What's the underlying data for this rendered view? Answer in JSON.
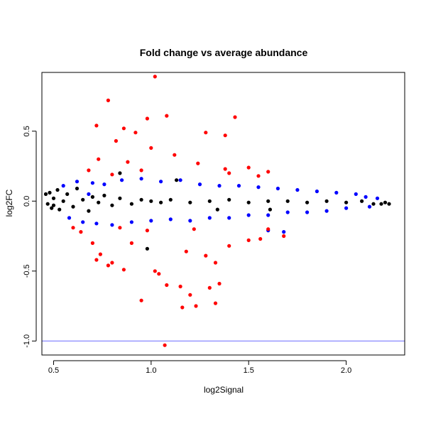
{
  "chart_data": {
    "type": "scatter",
    "title": "Fold change vs average abundance",
    "xlabel": "log2Signal",
    "ylabel": "log2FC",
    "xlim": [
      0.44,
      2.3
    ],
    "ylim": [
      -1.1,
      0.92
    ],
    "x_ticks": [
      0.5,
      1.0,
      1.5,
      2.0
    ],
    "x_tick_labels": [
      "0.5",
      "1.0",
      "1.5",
      "2.0"
    ],
    "y_ticks": [
      -1.0,
      -0.5,
      0.0,
      0.5
    ],
    "y_tick_labels": [
      "-1.0",
      "-0.5",
      "0.0",
      "0.5"
    ],
    "grid": false,
    "colors": {
      "background_points": "#000000",
      "moderate_points": "#0000ff",
      "outlier_points": "#ff0000",
      "reference_line": "#6a6aff"
    },
    "reference_line": {
      "orientation": "horizontal",
      "y": -1.0
    },
    "series": [
      {
        "color": "#000000",
        "points": [
          [
            0.46,
            0.05
          ],
          [
            0.47,
            -0.02
          ],
          [
            0.48,
            0.06
          ],
          [
            0.49,
            -0.05
          ],
          [
            0.5,
            0.02
          ],
          [
            0.5,
            -0.03
          ],
          [
            0.52,
            0.08
          ],
          [
            0.53,
            -0.06
          ],
          [
            0.55,
            0.0
          ],
          [
            0.57,
            0.05
          ],
          [
            0.6,
            -0.04
          ],
          [
            0.62,
            0.09
          ],
          [
            0.65,
            0.01
          ],
          [
            0.68,
            -0.07
          ],
          [
            0.7,
            0.03
          ],
          [
            0.73,
            -0.01
          ],
          [
            0.76,
            0.04
          ],
          [
            0.8,
            -0.03
          ],
          [
            0.84,
            0.02
          ],
          [
            0.9,
            -0.02
          ],
          [
            0.95,
            0.01
          ],
          [
            1.0,
            0.0
          ],
          [
            1.05,
            -0.01
          ],
          [
            1.1,
            0.01
          ],
          [
            1.2,
            -0.01
          ],
          [
            1.3,
            0.0
          ],
          [
            1.4,
            0.01
          ],
          [
            1.5,
            -0.01
          ],
          [
            1.6,
            0.0
          ],
          [
            1.7,
            0.0
          ],
          [
            1.8,
            -0.01
          ],
          [
            1.9,
            0.0
          ],
          [
            2.0,
            -0.01
          ],
          [
            2.08,
            0.0
          ],
          [
            2.14,
            -0.02
          ],
          [
            2.18,
            -0.02
          ],
          [
            2.2,
            -0.01
          ],
          [
            2.22,
            -0.02
          ],
          [
            0.84,
            0.2
          ],
          [
            0.98,
            -0.34
          ],
          [
            1.34,
            -0.06
          ],
          [
            1.61,
            -0.06
          ],
          [
            1.13,
            0.15
          ]
        ]
      },
      {
        "color": "#0000ff",
        "points": [
          [
            0.55,
            0.11
          ],
          [
            0.58,
            -0.12
          ],
          [
            0.62,
            0.14
          ],
          [
            0.65,
            -0.15
          ],
          [
            0.7,
            0.13
          ],
          [
            0.72,
            -0.16
          ],
          [
            0.76,
            0.12
          ],
          [
            0.8,
            -0.17
          ],
          [
            0.85,
            0.15
          ],
          [
            0.9,
            -0.15
          ],
          [
            0.95,
            0.16
          ],
          [
            1.0,
            -0.14
          ],
          [
            1.05,
            0.14
          ],
          [
            1.1,
            -0.13
          ],
          [
            1.15,
            0.15
          ],
          [
            1.2,
            -0.14
          ],
          [
            1.25,
            0.12
          ],
          [
            1.3,
            -0.12
          ],
          [
            1.35,
            0.11
          ],
          [
            1.4,
            -0.12
          ],
          [
            1.45,
            0.11
          ],
          [
            1.5,
            -0.1
          ],
          [
            1.55,
            0.1
          ],
          [
            1.6,
            -0.1
          ],
          [
            1.65,
            0.09
          ],
          [
            1.7,
            -0.08
          ],
          [
            1.75,
            0.08
          ],
          [
            1.8,
            -0.08
          ],
          [
            1.85,
            0.07
          ],
          [
            1.9,
            -0.07
          ],
          [
            1.95,
            0.06
          ],
          [
            2.0,
            -0.05
          ],
          [
            2.05,
            0.05
          ],
          [
            2.1,
            0.03
          ],
          [
            2.12,
            -0.04
          ],
          [
            2.16,
            0.02
          ],
          [
            0.68,
            0.05
          ],
          [
            1.6,
            -0.21
          ],
          [
            1.68,
            -0.22
          ]
        ]
      },
      {
        "color": "#ff0000",
        "points": [
          [
            1.02,
            0.89
          ],
          [
            0.78,
            0.72
          ],
          [
            1.08,
            0.61
          ],
          [
            0.72,
            0.54
          ],
          [
            0.98,
            0.59
          ],
          [
            1.43,
            0.6
          ],
          [
            1.28,
            0.49
          ],
          [
            1.38,
            0.47
          ],
          [
            0.86,
            0.52
          ],
          [
            0.92,
            0.49
          ],
          [
            0.82,
            0.43
          ],
          [
            0.73,
            0.3
          ],
          [
            1.0,
            0.38
          ],
          [
            1.12,
            0.33
          ],
          [
            0.88,
            0.28
          ],
          [
            1.24,
            0.27
          ],
          [
            0.68,
            0.22
          ],
          [
            1.38,
            0.23
          ],
          [
            1.5,
            0.24
          ],
          [
            1.6,
            0.21
          ],
          [
            1.55,
            0.18
          ],
          [
            1.4,
            0.2
          ],
          [
            0.95,
            0.22
          ],
          [
            0.8,
            0.19
          ],
          [
            0.64,
            -0.22
          ],
          [
            0.7,
            -0.3
          ],
          [
            0.74,
            -0.38
          ],
          [
            0.72,
            -0.42
          ],
          [
            0.78,
            -0.46
          ],
          [
            0.8,
            -0.44
          ],
          [
            0.86,
            -0.49
          ],
          [
            0.95,
            -0.71
          ],
          [
            1.02,
            -0.5
          ],
          [
            1.08,
            -0.6
          ],
          [
            1.04,
            -0.52
          ],
          [
            1.15,
            -0.61
          ],
          [
            1.2,
            -0.67
          ],
          [
            1.16,
            -0.76
          ],
          [
            1.23,
            -0.75
          ],
          [
            1.3,
            -0.62
          ],
          [
            1.33,
            -0.73
          ],
          [
            1.35,
            -0.59
          ],
          [
            1.28,
            -0.39
          ],
          [
            1.33,
            -0.44
          ],
          [
            1.4,
            -0.32
          ],
          [
            1.5,
            -0.28
          ],
          [
            1.56,
            -0.27
          ],
          [
            1.6,
            -0.2
          ],
          [
            1.68,
            -0.25
          ],
          [
            1.07,
            -1.03
          ],
          [
            0.9,
            -0.3
          ],
          [
            1.18,
            -0.36
          ],
          [
            0.98,
            -0.21
          ],
          [
            1.22,
            -0.2
          ],
          [
            0.84,
            -0.19
          ],
          [
            0.6,
            -0.19
          ]
        ]
      }
    ]
  }
}
